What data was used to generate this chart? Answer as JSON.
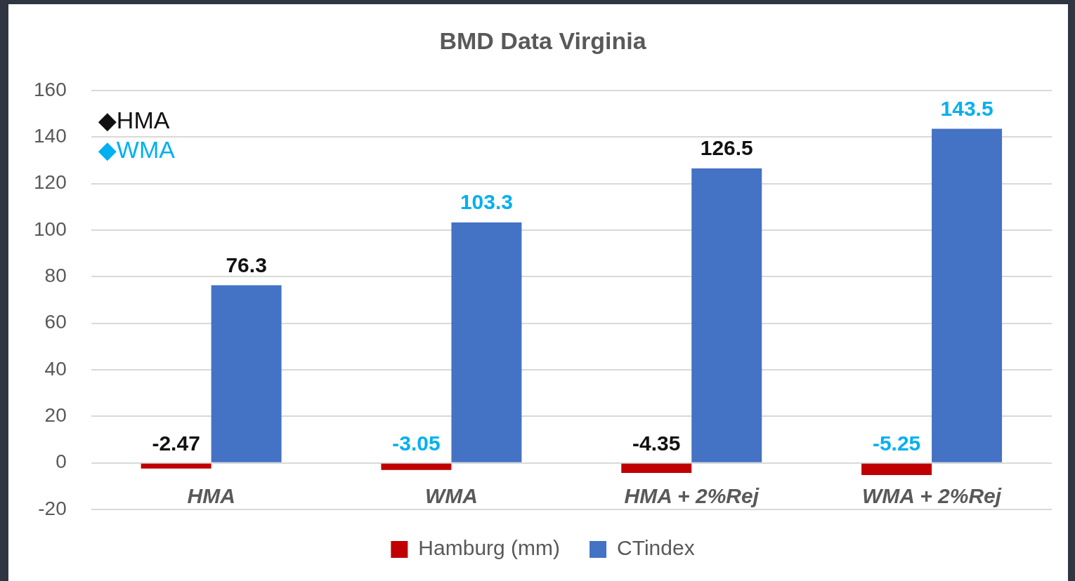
{
  "chart_data": {
    "type": "bar",
    "title": "BMD Data Virginia",
    "categories": [
      "HMA",
      "WMA",
      "HMA + 2%Rej",
      "WMA + 2%Rej"
    ],
    "series": [
      {
        "name": "Hamburg (mm)",
        "color": "#c00000",
        "values": [
          -2.47,
          -3.05,
          -4.35,
          -5.25
        ]
      },
      {
        "name": "CTindex",
        "color": "#4472c4",
        "values": [
          76.3,
          103.3,
          126.5,
          143.5
        ]
      }
    ],
    "ylim": [
      -20,
      160
    ],
    "yticks": [
      -20,
      0,
      20,
      40,
      60,
      80,
      100,
      120,
      140,
      160
    ],
    "grid": "y",
    "legend": "bottom",
    "data_labels": true,
    "annotations": [
      "◆HMA",
      "◆WMA"
    ]
  }
}
